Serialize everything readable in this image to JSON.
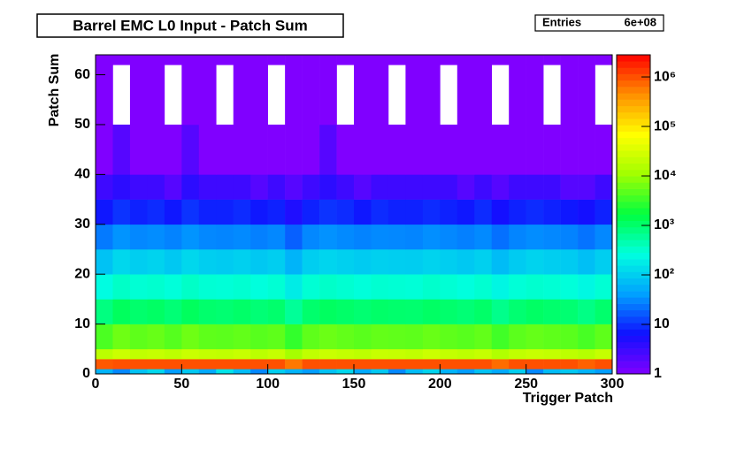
{
  "chart_data": {
    "type": "heatmap",
    "title": "Barrel EMC L0 Input - Patch Sum",
    "stats": {
      "label": "Entries",
      "value": "6e+08"
    },
    "xlabel": "Trigger Patch",
    "ylabel": "Patch Sum",
    "xlim": [
      0,
      300
    ],
    "xticks": [
      0,
      50,
      100,
      150,
      200,
      250,
      300
    ],
    "ylim": [
      0,
      64
    ],
    "yticks": [
      0,
      10,
      20,
      30,
      40,
      50,
      60
    ],
    "zlim": [
      1,
      2800000
    ],
    "zlog": true,
    "zticks": [
      1,
      10,
      {
        "value": 100,
        "label": "10²"
      },
      {
        "value": 1000,
        "label": "10³"
      },
      {
        "value": 10000,
        "label": "10⁴"
      },
      {
        "value": 100000,
        "label": "10⁵"
      },
      {
        "value": 1000000,
        "label": "10⁶"
      }
    ],
    "colorscale": [
      "#8000ff",
      "#1010ff",
      "#00a0ff",
      "#00ffe0",
      "#00ff40",
      "#a0ff00",
      "#ffff00",
      "#ff9000",
      "#ff0000"
    ],
    "xbins": [
      0,
      10,
      20,
      30,
      40,
      50,
      60,
      70,
      80,
      90,
      100,
      110,
      120,
      130,
      140,
      150,
      160,
      170,
      180,
      190,
      200,
      210,
      220,
      230,
      240,
      250,
      260,
      270,
      280,
      290,
      300
    ],
    "ybins": [
      0,
      1,
      3,
      5,
      10,
      15,
      20,
      25,
      30,
      35,
      40,
      50,
      62,
      64
    ],
    "z": [
      [
        60,
        30,
        80,
        120,
        40,
        90,
        50,
        150,
        70,
        30,
        100,
        60,
        40,
        80,
        120,
        50,
        90,
        30,
        70,
        110,
        60,
        40,
        80,
        50,
        100,
        30,
        70,
        90,
        60,
        40
      ],
      [
        900000,
        1000000,
        1000000,
        1000000,
        1000000,
        1000000,
        1000000,
        1000000,
        1000000,
        1000000,
        1000000,
        600000,
        1000000,
        1000000,
        1000000,
        1000000,
        1000000,
        1000000,
        1000000,
        1000000,
        1000000,
        1000000,
        1000000,
        700000,
        1000000,
        1000000,
        1000000,
        1000000,
        800000,
        1000000
      ],
      [
        18000,
        25000,
        20000,
        22000,
        19000,
        24000,
        21000,
        20000,
        23000,
        18000,
        22000,
        12000,
        20000,
        24000,
        21000,
        19000,
        23000,
        22000,
        20000,
        25000,
        21000,
        19000,
        22000,
        15000,
        20000,
        23000,
        21000,
        19000,
        16000,
        22000
      ],
      [
        4000,
        6000,
        5000,
        5500,
        4500,
        6000,
        5000,
        4800,
        5200,
        4600,
        5000,
        3000,
        5000,
        5800,
        5200,
        4700,
        5300,
        5100,
        4900,
        5600,
        5000,
        4600,
        5200,
        3500,
        4800,
        5400,
        5000,
        4700,
        3800,
        5000
      ],
      [
        800,
        1200,
        1000,
        1100,
        900,
        1200,
        1000,
        950,
        1050,
        900,
        1000,
        600,
        1000,
        1150,
        1050,
        950,
        1050,
        1000,
        980,
        1100,
        1000,
        900,
        1050,
        700,
        950,
        1100,
        1000,
        950,
        750,
        1000
      ],
      [
        250,
        350,
        300,
        320,
        280,
        350,
        300,
        290,
        310,
        270,
        300,
        180,
        300,
        340,
        310,
        280,
        310,
        300,
        290,
        330,
        300,
        270,
        310,
        220,
        290,
        320,
        300,
        280,
        230,
        300
      ],
      [
        80,
        120,
        100,
        110,
        90,
        120,
        100,
        95,
        105,
        90,
        100,
        60,
        100,
        115,
        105,
        95,
        105,
        100,
        98,
        110,
        100,
        90,
        105,
        70,
        95,
        110,
        100,
        95,
        75,
        100
      ],
      [
        25,
        35,
        30,
        32,
        28,
        35,
        30,
        29,
        31,
        27,
        30,
        18,
        30,
        34,
        31,
        28,
        31,
        30,
        29,
        33,
        30,
        27,
        31,
        22,
        29,
        32,
        30,
        28,
        23,
        30
      ],
      [
        7,
        10,
        8,
        9,
        7,
        10,
        8,
        8,
        9,
        7,
        8,
        5,
        8,
        10,
        9,
        7,
        9,
        8,
        8,
        9,
        8,
        7,
        9,
        6,
        8,
        9,
        8,
        7,
        6,
        8
      ],
      [
        3,
        4,
        3,
        3,
        2,
        4,
        3,
        3,
        3,
        2,
        3,
        2,
        3,
        4,
        3,
        2,
        3,
        3,
        3,
        3,
        3,
        2,
        3,
        2,
        3,
        3,
        3,
        2,
        2,
        3
      ],
      [
        1,
        2,
        1,
        1,
        1,
        2,
        1,
        1,
        1,
        1,
        1,
        1,
        1,
        2,
        1,
        1,
        1,
        1,
        1,
        1,
        1,
        1,
        1,
        1,
        1,
        1,
        1,
        1,
        1,
        1
      ],
      [
        1,
        null,
        1,
        1,
        null,
        1,
        1,
        null,
        1,
        1,
        null,
        1,
        1,
        1,
        null,
        1,
        1,
        null,
        1,
        1,
        null,
        1,
        1,
        null,
        1,
        1,
        null,
        1,
        1,
        null
      ],
      [
        1,
        1,
        1,
        1,
        1,
        1,
        1,
        1,
        1,
        1,
        1,
        1,
        1,
        1,
        1,
        1,
        1,
        1,
        1,
        1,
        1,
        1,
        1,
        1,
        1,
        1,
        1,
        1,
        1,
        1
      ]
    ]
  }
}
